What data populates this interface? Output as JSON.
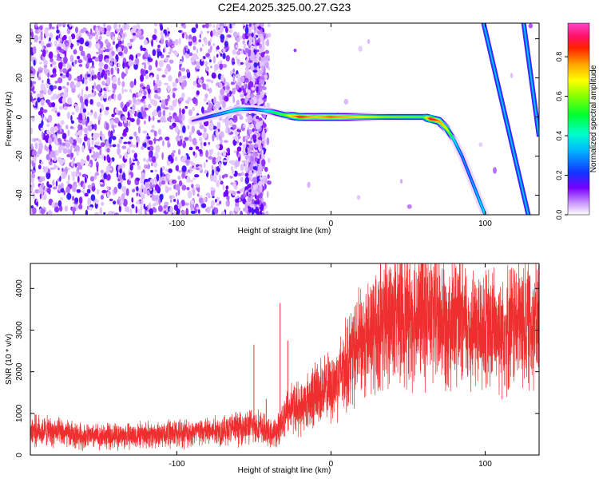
{
  "title": "C2E4.2025.325.00.27.G23",
  "chart_data": [
    {
      "type": "heatmap",
      "title": "C2E4.2025.325.00.27.G23",
      "xlabel": "Height of straight line (km)",
      "ylabel": "Frequency (Hz)",
      "xlim": [
        -195,
        135
      ],
      "ylim": [
        -50,
        48
      ],
      "xticks": [
        -100,
        0,
        100
      ],
      "yticks": [
        -40,
        -20,
        0,
        20,
        40
      ],
      "grid": false,
      "colorbar": {
        "label": "Normalized spectral amplitude",
        "range": [
          0,
          0.97
        ],
        "ticks": [
          "0.0",
          "0.2",
          "0.4",
          "0.6",
          "0.8"
        ],
        "colormap": "rainbow (white → purple → blue → cyan → green → yellow → orange → red → pink)"
      },
      "features": [
        {
          "name": "main trace",
          "x": [
            -90,
            -70,
            -60,
            -50,
            -40,
            -30,
            -20,
            -10,
            0,
            20,
            40,
            60,
            65,
            70,
            75,
            80,
            85,
            90,
            95,
            100
          ],
          "y": [
            -2,
            2,
            4,
            4,
            3,
            1,
            0,
            0,
            0,
            0,
            0,
            0,
            -1,
            -2,
            -6,
            -12,
            -20,
            -30,
            -40,
            -50
          ],
          "amplitude": [
            0.15,
            0.35,
            0.45,
            0.25,
            0.45,
            0.6,
            0.9,
            0.75,
            0.85,
            0.7,
            0.6,
            0.55,
            0.95,
            0.8,
            0.7,
            0.4,
            0.3,
            0.3,
            0.35,
            0.4
          ]
        },
        {
          "name": "aliased trace 1",
          "x": [
            99,
            128
          ],
          "y": [
            48,
            -50
          ],
          "amplitude": 0.3
        },
        {
          "name": "aliased trace 2",
          "x": [
            125,
            135
          ],
          "y": [
            48,
            -10
          ],
          "amplitude": 0.3
        },
        {
          "name": "noise band",
          "x": [
            -195,
            -40
          ],
          "y": [
            -50,
            48
          ],
          "amplitude": 0.12
        },
        {
          "name": "noise patch",
          "x": [
            -55,
            -43
          ],
          "y": [
            -50,
            48
          ],
          "amplitude": 0.12
        }
      ]
    },
    {
      "type": "line",
      "xlabel": "Height of straight line (km)",
      "ylabel": "SNR (10 * v/v)",
      "xlim": [
        -195,
        135
      ],
      "ylim": [
        0,
        4600
      ],
      "xticks": [
        -100,
        0,
        100
      ],
      "yticks": [
        0,
        1000,
        2000,
        3000,
        4000
      ],
      "grid": false,
      "color": "#ef2f2f",
      "series": [
        {
          "x": [
            -195,
            -180,
            -160,
            -140,
            -120,
            -100,
            -80,
            -70,
            -60,
            -50,
            -45,
            -40,
            -35,
            -30,
            -25,
            -20,
            -10,
            0,
            10,
            20,
            30,
            35,
            40,
            50,
            60,
            70,
            80,
            90,
            100,
            110,
            120,
            130,
            135
          ],
          "values": [
            600,
            550,
            450,
            450,
            480,
            520,
            560,
            600,
            650,
            700,
            650,
            500,
            550,
            1000,
            1200,
            1100,
            1500,
            1600,
            2200,
            2700,
            3000,
            3300,
            3350,
            3350,
            3400,
            3300,
            3200,
            3050,
            3000,
            3050,
            3150,
            3200,
            3150
          ]
        }
      ],
      "spikes": [
        {
          "x": -50,
          "value": 2650
        },
        {
          "x": -42,
          "value": 1350
        },
        {
          "x": -33,
          "value": 3650
        },
        {
          "x": -28,
          "value": 2750
        },
        {
          "x": 45,
          "value": 4580
        }
      ]
    }
  ]
}
